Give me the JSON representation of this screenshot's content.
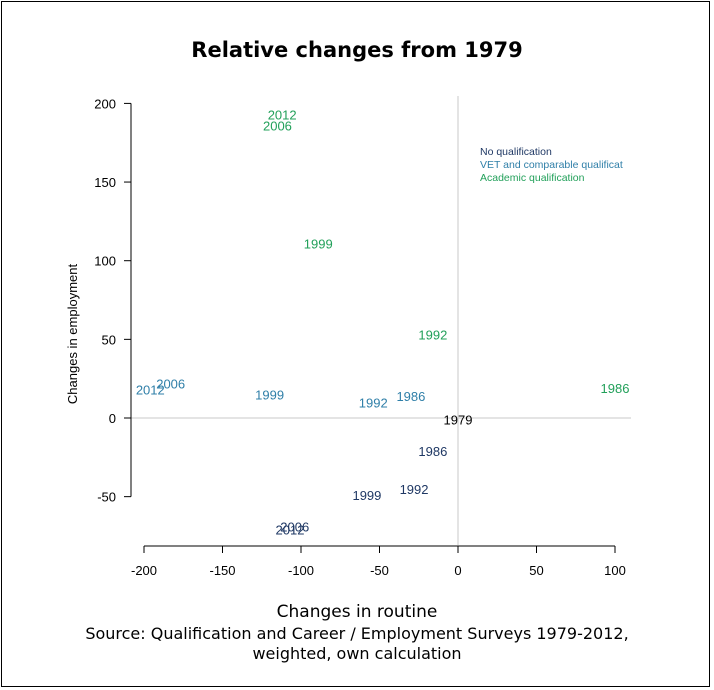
{
  "chart_data": {
    "type": "scatter",
    "title": "Relative changes from 1979",
    "xlabel": "Changes in routine",
    "ylabel": "Changes in employment",
    "xlim": [
      -200,
      110
    ],
    "ylim": [
      -80,
      205
    ],
    "x_ticks": [
      -200,
      -150,
      -100,
      -50,
      0,
      50,
      100
    ],
    "y_ticks": [
      -50,
      0,
      50,
      100,
      150,
      200
    ],
    "reference_lines": {
      "x": 0,
      "y": 0
    },
    "grid": false,
    "legend_position": "top-right",
    "colors": {
      "no_qualification": "#1f3864",
      "vet": "#2f7fa8",
      "academic": "#22a05a",
      "base": "#000000"
    },
    "series": [
      {
        "name": "No qualification",
        "color": "#1f3864",
        "points": [
          {
            "label": "1986",
            "x": -16,
            "y": -21
          },
          {
            "label": "1992",
            "x": -28,
            "y": -45
          },
          {
            "label": "1999",
            "x": -58,
            "y": -49
          },
          {
            "label": "2006",
            "x": -104,
            "y": -69
          },
          {
            "label": "2012",
            "x": -107,
            "y": -71
          }
        ]
      },
      {
        "name": "VET and comparable qualificat",
        "color": "#2f7fa8",
        "points": [
          {
            "label": "1986",
            "x": -30,
            "y": 14
          },
          {
            "label": "1992",
            "x": -54,
            "y": 10
          },
          {
            "label": "1999",
            "x": -120,
            "y": 15
          },
          {
            "label": "2006",
            "x": -183,
            "y": 22
          },
          {
            "label": "2012",
            "x": -196,
            "y": 18
          }
        ]
      },
      {
        "name": "Academic qualification",
        "color": "#22a05a",
        "points": [
          {
            "label": "1986",
            "x": 100,
            "y": 19
          },
          {
            "label": "1992",
            "x": -16,
            "y": 53
          },
          {
            "label": "1999",
            "x": -89,
            "y": 111
          },
          {
            "label": "2006",
            "x": -115,
            "y": 186
          },
          {
            "label": "2012",
            "x": -112,
            "y": 193
          }
        ]
      },
      {
        "name": "",
        "color": "#000000",
        "points": [
          {
            "label": "1979",
            "x": 0,
            "y": -1
          }
        ]
      }
    ]
  },
  "source_lines": [
    "Source: Qualification and Career / Employment Surveys 1979-2012,",
    "weighted, own calculation"
  ]
}
